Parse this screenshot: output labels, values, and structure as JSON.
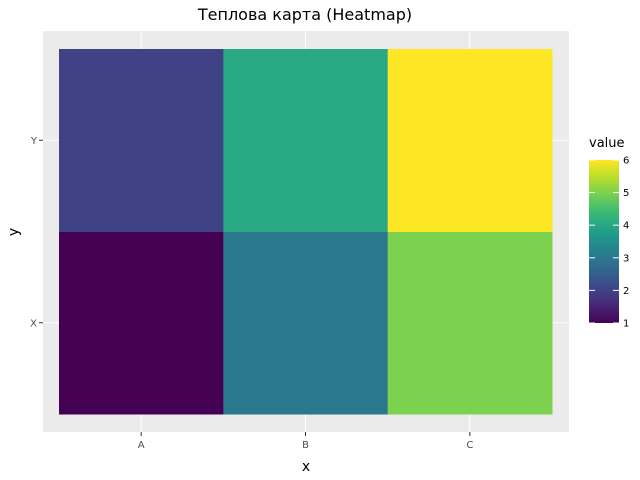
{
  "chart_data": {
    "type": "heatmap",
    "title": "Теплова карта (Heatmap)",
    "xlabel": "x",
    "ylabel": "y",
    "x_categories": [
      "A",
      "B",
      "C"
    ],
    "y_categories": [
      "X",
      "Y"
    ],
    "cells": [
      {
        "x": "A",
        "y": "X",
        "value": 1
      },
      {
        "x": "B",
        "y": "X",
        "value": 3
      },
      {
        "x": "C",
        "y": "X",
        "value": 5
      },
      {
        "x": "A",
        "y": "Y",
        "value": 2
      },
      {
        "x": "B",
        "y": "Y",
        "value": 4
      },
      {
        "x": "C",
        "y": "Y",
        "value": 6
      }
    ],
    "legend": {
      "title": "value",
      "placement": "right",
      "ticks": [
        1,
        2,
        3,
        4,
        5,
        6
      ],
      "range": [
        1,
        6
      ]
    },
    "colormap": "viridis",
    "colors": {
      "panel_background": "#ebebeb",
      "gridline": "#ffffff",
      "low": "#440154",
      "high": "#fde725"
    },
    "grid": true
  }
}
